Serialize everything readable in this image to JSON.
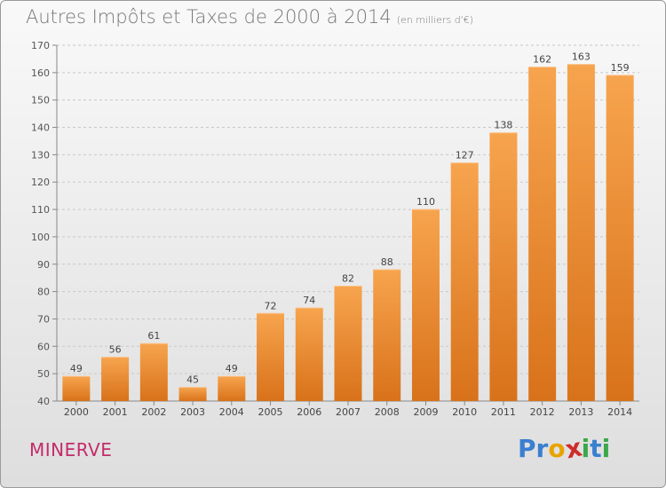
{
  "header": {
    "title": "Autres Impôts et Taxes de 2000 à 2014",
    "unit": "(en milliers d'€)"
  },
  "footer": {
    "commune": "MINERVE",
    "logo": [
      "P",
      "r",
      "o",
      "x",
      "i",
      "t",
      "i"
    ]
  },
  "colors": {
    "bar": "#f39a3f",
    "bar_dark": "#d9741c",
    "grid": "#c8c8c8",
    "logo": [
      "#3a7fd0",
      "#3a7fd0",
      "#e8a300",
      "#d02a2a",
      "#3aa84a",
      "#3a7fd0",
      "#3aa84a"
    ]
  },
  "chart_data": {
    "type": "bar",
    "title": "Autres Impôts et Taxes de 2000 à 2014",
    "ylabel": "en milliers d'€",
    "categories": [
      "2000",
      "2001",
      "2002",
      "2003",
      "2004",
      "2005",
      "2006",
      "2007",
      "2008",
      "2009",
      "2010",
      "2011",
      "2012",
      "2013",
      "2014"
    ],
    "values": [
      49,
      56,
      61,
      45,
      49,
      72,
      74,
      82,
      88,
      110,
      127,
      138,
      162,
      163,
      159
    ],
    "ylim": [
      40,
      170
    ],
    "yticks": [
      40,
      50,
      60,
      70,
      80,
      90,
      100,
      110,
      120,
      130,
      140,
      150,
      160,
      170
    ],
    "grid": true
  }
}
